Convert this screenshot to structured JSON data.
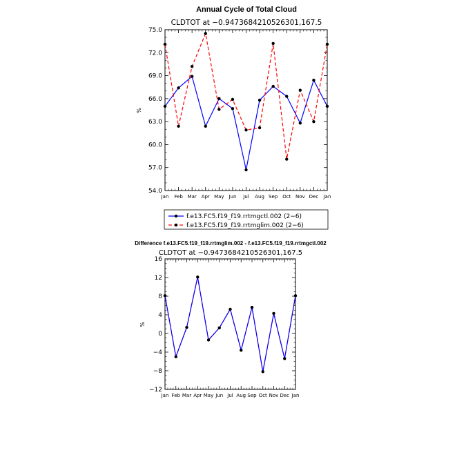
{
  "chart_data": [
    {
      "type": "line",
      "title": "Annual Cycle of Total Cloud",
      "subtitle": "CLDTOT  at  −0.9473684210526301,167.5",
      "ylabel": "%",
      "ylim": [
        54,
        75
      ],
      "yticks": [
        "54.0",
        "57.0",
        "60.0",
        "63.0",
        "66.0",
        "69.0",
        "72.0",
        "75.0"
      ],
      "categories": [
        "Jan",
        "Feb",
        "Mar",
        "Apr",
        "May",
        "Jun",
        "Jul",
        "Aug",
        "Sep",
        "Oct",
        "Nov",
        "Dec",
        "Jan"
      ],
      "series": [
        {
          "name": "f.e13.FC5.f19_f19.rrtmgctl.002 (2−6)",
          "color": "#0000ff",
          "dash": "solid",
          "values": [
            65.0,
            67.4,
            68.9,
            62.4,
            66.0,
            64.7,
            56.7,
            65.8,
            67.6,
            66.3,
            62.8,
            68.4,
            65.0
          ]
        },
        {
          "name": "f.e13.FC5.f19_f19.rrtmglim.002 (2−6)",
          "color": "#ff0000",
          "dash": "dashed",
          "values": [
            73.1,
            62.4,
            70.2,
            74.5,
            64.6,
            65.9,
            61.9,
            62.2,
            73.2,
            58.1,
            67.1,
            63.0,
            73.1
          ]
        }
      ],
      "legend": "below"
    },
    {
      "type": "line",
      "title": "Difference f.e13.FC5.f19_f19.rrtmglim.002 - f.e13.FC5.f19_f19.rrtmgctl.002",
      "subtitle": "CLDTOT  at  −0.9473684210526301,167.5",
      "ylabel": "%",
      "ylim": [
        -12,
        16
      ],
      "yticks": [
        "−12",
        "−8",
        "−4",
        "0",
        "4",
        "8",
        "12",
        "16"
      ],
      "categories": [
        "Jan",
        "Feb",
        "Mar",
        "Apr",
        "May",
        "Jun",
        "Jul",
        "Aug",
        "Sep",
        "Oct",
        "Nov",
        "Dec",
        "Jan"
      ],
      "series": [
        {
          "color": "#0000ff",
          "dash": "solid",
          "values": [
            8.1,
            -5.0,
            1.3,
            12.1,
            -1.4,
            1.2,
            5.2,
            -3.6,
            5.6,
            -8.2,
            4.3,
            -5.4,
            8.1
          ]
        }
      ]
    }
  ]
}
